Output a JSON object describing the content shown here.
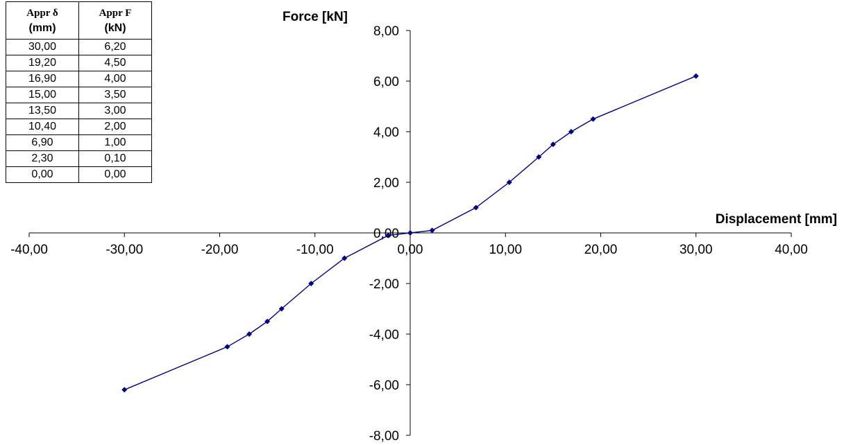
{
  "table": {
    "headers": [
      {
        "line1": "Appr δ",
        "line2": "(mm)"
      },
      {
        "line1": "Appr F",
        "line2": "(kN)"
      }
    ],
    "rows": [
      [
        "30,00",
        "6,20"
      ],
      [
        "19,20",
        "4,50"
      ],
      [
        "16,90",
        "4,00"
      ],
      [
        "15,00",
        "3,50"
      ],
      [
        "13,50",
        "3,00"
      ],
      [
        "10,40",
        "2,00"
      ],
      [
        "6,90",
        "1,00"
      ],
      [
        "2,30",
        "0,10"
      ],
      [
        "0,00",
        "0,00"
      ]
    ]
  },
  "chart_data": {
    "type": "scatter",
    "title": "",
    "xlabel": "Displacement [mm]",
    "ylabel": "Force [kN]",
    "xlim": [
      -40,
      40
    ],
    "ylim": [
      -8,
      8
    ],
    "x_ticks": [
      -40,
      -30,
      -20,
      -10,
      0,
      10,
      20,
      30,
      40
    ],
    "y_ticks": [
      -8,
      -6,
      -4,
      -2,
      0,
      2,
      4,
      6,
      8
    ],
    "x_tick_labels": [
      "-40,00",
      "-30,00",
      "-20,00",
      "-10,00",
      "0,00",
      "10,00",
      "20,00",
      "30,00",
      "40,00"
    ],
    "y_tick_labels": [
      "-8,00",
      "-6,00",
      "-4,00",
      "-2,00",
      "0,00",
      "2,00",
      "4,00",
      "6,00",
      "8,00"
    ],
    "grid": false,
    "legend": "none",
    "line_color": "#000080",
    "series": [
      {
        "x": [
          -30,
          -19.2,
          -16.9,
          -15,
          -13.5,
          -10.4,
          -6.9,
          -2.3,
          0,
          2.3,
          6.9,
          10.4,
          13.5,
          15,
          16.9,
          19.2,
          30
        ],
        "y": [
          -6.2,
          -4.5,
          -4,
          -3.5,
          -3,
          -2,
          -1,
          -0.1,
          0,
          0.1,
          1,
          2,
          3,
          3.5,
          4,
          4.5,
          6.2
        ]
      }
    ]
  }
}
